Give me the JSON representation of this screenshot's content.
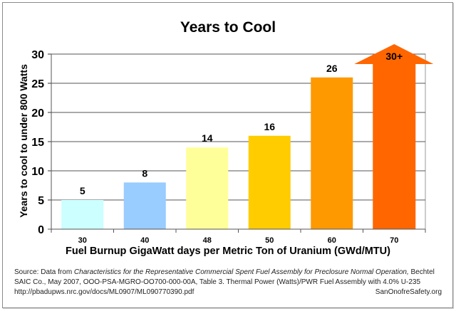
{
  "chart_data": {
    "type": "bar",
    "title": "Years to Cool",
    "xlabel": "Fuel Burnup GigaWatt days per Metric Ton of Uranium (GWd/MTU)",
    "ylabel": "Years to cool to under 800 Watts",
    "categories": [
      "30",
      "40",
      "48",
      "50",
      "60",
      "70"
    ],
    "values": [
      5,
      8,
      14,
      16,
      26,
      30
    ],
    "data_labels": [
      "5",
      "8",
      "14",
      "16",
      "26",
      "30+"
    ],
    "bar_colors": [
      "#ccffff",
      "#99ccff",
      "#ffff99",
      "#ffcc00",
      "#ff9900",
      "#ff6600"
    ],
    "annotations": [
      "Last bar (70) drawn as upward arrow labeled 30+, exceeding axis maximum"
    ],
    "ylim": [
      0,
      30
    ],
    "yticks": [
      0,
      5,
      10,
      15,
      20,
      25,
      30
    ],
    "grid": true,
    "legend": "none"
  },
  "source": {
    "prefix": "Source: Data from ",
    "italic_title": "Characteristics for the Representative Commercial Spent Fuel Assembly for Preclosure Normal Operation,",
    "suffix": " Bechtel SAIC Co., May 2007, OOO-PSA-MGRO-OO700-000-00A, Table 3. Thermal Power (Watts)/PWR Fuel Assembly with 4.0% U-235",
    "url": "http://pbadupws.nrc.gov/docs/ML0907/ML090770390.pdf",
    "credit": "SanOnofreSafety.org"
  }
}
